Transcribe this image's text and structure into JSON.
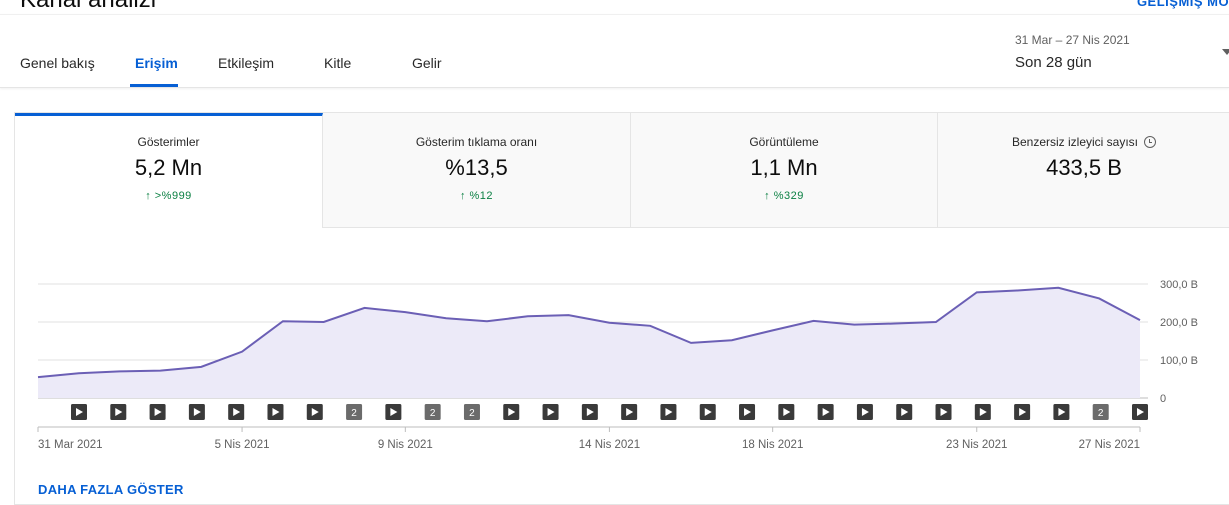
{
  "header": {
    "title": "Kanal analizi",
    "advanced_mode": "GELİŞMİŞ MOD"
  },
  "tabs": [
    {
      "label": "Genel bakış",
      "active": false
    },
    {
      "label": "Erişim",
      "active": true
    },
    {
      "label": "Etkileşim",
      "active": false
    },
    {
      "label": "Kitle",
      "active": false
    },
    {
      "label": "Gelir",
      "active": false
    }
  ],
  "date_range": {
    "range": "31 Mar – 27 Nis 2021",
    "label": "Son 28 gün"
  },
  "metrics": [
    {
      "label": "Gösterimler",
      "value": "5,2 Mn",
      "change": "↑ >%999"
    },
    {
      "label": "Gösterim tıklama oranı",
      "value": "%13,5",
      "change": "↑ %12"
    },
    {
      "label": "Görüntüleme",
      "value": "1,1 Mn",
      "change": "↑ %329"
    },
    {
      "label": "Benzersiz izleyici sayısı",
      "value": "433,5 B",
      "change": "",
      "icon": "clock-icon"
    }
  ],
  "chart_data": {
    "type": "area",
    "title": "Gösterimler",
    "ylim": [
      0,
      300000
    ],
    "y_ticks": [
      "0",
      "100,0 B",
      "200,0 B",
      "300,0 B"
    ],
    "y_tick_values": [
      0,
      100000,
      200000,
      300000
    ],
    "x_tick_labels": [
      {
        "label": "31 Mar 2021",
        "index": 0
      },
      {
        "label": "5 Nis 2021",
        "index": 5
      },
      {
        "label": "9 Nis 2021",
        "index": 9
      },
      {
        "label": "14 Nis 2021",
        "index": 14
      },
      {
        "label": "18 Nis 2021",
        "index": 18
      },
      {
        "label": "23 Nis 2021",
        "index": 23
      },
      {
        "label": "27 Nis 2021",
        "index": 27
      }
    ],
    "series": [
      {
        "name": "Gösterimler",
        "color": "#6b5fb5",
        "values": [
          55000,
          65000,
          70000,
          72000,
          82000,
          122000,
          202000,
          200000,
          237000,
          226000,
          210000,
          202000,
          215000,
          218000,
          198000,
          190000,
          145000,
          152000,
          178000,
          203000,
          193000,
          196000,
          200000,
          278000,
          283000,
          290000,
          262000,
          205000
        ]
      }
    ],
    "markers": [
      "▶",
      "▶",
      "▶",
      "▶",
      "▶",
      "▶",
      "▶",
      "2",
      "▶",
      "2",
      "2",
      "▶",
      "▶",
      "▶",
      "▶",
      "▶",
      "▶",
      "▶",
      "▶",
      "▶",
      "▶",
      "▶",
      "▶",
      "▶",
      "▶",
      "▶",
      "2",
      "▶"
    ]
  },
  "show_more": "DAHA FAZLA GÖSTER"
}
